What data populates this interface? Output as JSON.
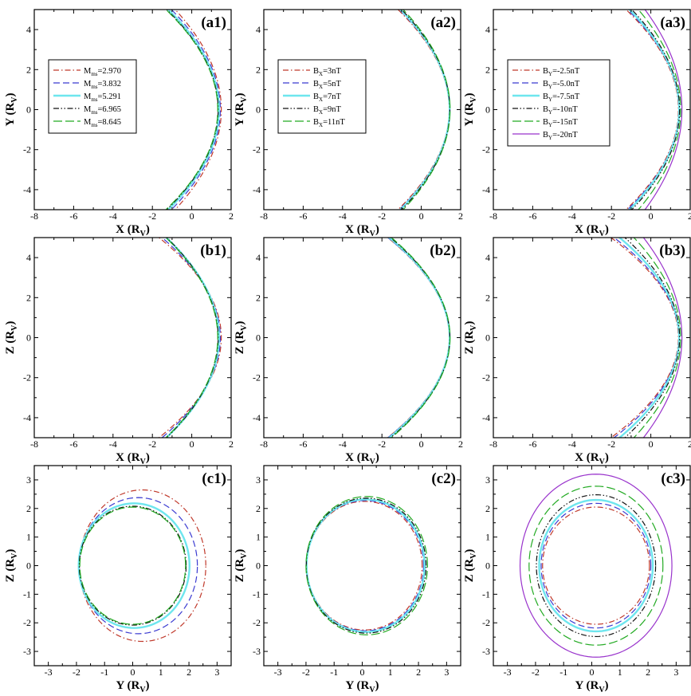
{
  "chart_data": [
    {
      "id": "a1",
      "type": "line",
      "panel_label": "(a1)",
      "xlabel": "X (R",
      "xlabel_sub": "V",
      "xlabel_end": ")",
      "ylabel": "Y (R",
      "ylabel_sub": "V",
      "ylabel_end": ")",
      "xlim": [
        -8,
        2
      ],
      "ylim": [
        -5,
        5
      ],
      "xticks": [
        -8,
        -6,
        -4,
        -2,
        0,
        2
      ],
      "yticks": [
        -4,
        -2,
        0,
        2,
        4
      ],
      "shape": "parabola",
      "legend_position": "upper-left",
      "series": [
        {
          "name": "M",
          "sub": "ms",
          "value": "=2.970",
          "color": "#c0392b",
          "dash": "dashdot",
          "nose": 1.5,
          "a": 10.67
        },
        {
          "name": "M",
          "sub": "ms",
          "value": "=3.832",
          "color": "#3b3bd1",
          "dash": "dash",
          "nose": 1.45,
          "a": 10.07
        },
        {
          "name": "M",
          "sub": "ms",
          "value": "=5.291",
          "color": "#6ee6ee",
          "dash": "solid",
          "nose": 1.38,
          "a": 9.72
        },
        {
          "name": "M",
          "sub": "ms",
          "value": "=6.965",
          "color": "#111111",
          "dash": "dashdotdot",
          "nose": 1.34,
          "a": 9.58
        },
        {
          "name": "M",
          "sub": "ms",
          "value": "=8.645",
          "color": "#22aa22",
          "dash": "longdash",
          "nose": 1.32,
          "a": 9.5
        }
      ]
    },
    {
      "id": "a2",
      "type": "line",
      "panel_label": "(a2)",
      "xlabel": "X (R",
      "xlabel_sub": "V",
      "xlabel_end": ")",
      "ylabel": "Y (R",
      "ylabel_sub": "V",
      "ylabel_end": ")",
      "xlim": [
        -8,
        2
      ],
      "ylim": [
        -5,
        5
      ],
      "xticks": [
        -8,
        -6,
        -4,
        -2,
        0,
        2
      ],
      "yticks": [
        -4,
        -2,
        0,
        2,
        4
      ],
      "shape": "parabola",
      "legend_position": "upper-left",
      "series": [
        {
          "name": "B",
          "sub": "X",
          "value": "=3nT",
          "color": "#c0392b",
          "dash": "dashdot",
          "nose": 1.42,
          "a": 9.6
        },
        {
          "name": "B",
          "sub": "X",
          "value": "=5nT",
          "color": "#3b3bd1",
          "dash": "dash",
          "nose": 1.43,
          "a": 9.8
        },
        {
          "name": "B",
          "sub": "X",
          "value": "=7nT",
          "color": "#6ee6ee",
          "dash": "solid",
          "nose": 1.44,
          "a": 10.0
        },
        {
          "name": "B",
          "sub": "X",
          "value": "=9nT",
          "color": "#111111",
          "dash": "dashdotdot",
          "nose": 1.45,
          "a": 10.2
        },
        {
          "name": "B",
          "sub": "X",
          "value": "=11nT",
          "color": "#22aa22",
          "dash": "longdash",
          "nose": 1.46,
          "a": 10.5
        }
      ]
    },
    {
      "id": "a3",
      "type": "line",
      "panel_label": "(a3)",
      "xlabel": "X (R",
      "xlabel_sub": "V",
      "xlabel_end": ")",
      "ylabel": "Y (R",
      "ylabel_sub": "V",
      "ylabel_end": ")",
      "xlim": [
        -8,
        2
      ],
      "ylim": [
        -5,
        5
      ],
      "xticks": [
        -8,
        -6,
        -4,
        -2,
        0,
        2
      ],
      "yticks": [
        -4,
        -2,
        0,
        2,
        4
      ],
      "shape": "parabola",
      "legend_position": "upper-left",
      "series": [
        {
          "name": "B",
          "sub": "Y",
          "value": "=-2.5nT",
          "color": "#c0392b",
          "dash": "dashdot",
          "nose": 1.4,
          "a": 9.4
        },
        {
          "name": "B",
          "sub": "Y",
          "value": "=-5.0nT",
          "color": "#3b3bd1",
          "dash": "dash",
          "nose": 1.42,
          "a": 9.6
        },
        {
          "name": "B",
          "sub": "Y",
          "value": "=-7.5nT",
          "color": "#6ee6ee",
          "dash": "solid",
          "nose": 1.44,
          "a": 9.9
        },
        {
          "name": "B",
          "sub": "Y",
          "value": "=-10nT",
          "color": "#111111",
          "dash": "dashdotdot",
          "nose": 1.46,
          "a": 10.3
        },
        {
          "name": "B",
          "sub": "Y",
          "value": "=-15nT",
          "color": "#22aa22",
          "dash": "longdash",
          "nose": 1.52,
          "a": 11.6
        },
        {
          "name": "B",
          "sub": "Y",
          "value": "=-20nT",
          "color": "#9933cc",
          "dash": "solid",
          "nose": 1.58,
          "a": 13.3
        }
      ]
    },
    {
      "id": "b1",
      "type": "line",
      "panel_label": "(b1)",
      "xlabel": "X (R",
      "xlabel_sub": "V",
      "xlabel_end": ")",
      "ylabel": "Z (R",
      "ylabel_sub": "V",
      "ylabel_end": ")",
      "xlim": [
        -8,
        2
      ],
      "ylim": [
        -5,
        5
      ],
      "xticks": [
        -8,
        -6,
        -4,
        -2,
        0,
        2
      ],
      "yticks": [
        -4,
        -2,
        0,
        2,
        4
      ],
      "shape": "parabola",
      "series": [
        {
          "color": "#c0392b",
          "dash": "dashdot",
          "nose": 1.5,
          "a": 7.9
        },
        {
          "color": "#3b3bd1",
          "dash": "dash",
          "nose": 1.45,
          "a": 8.45
        },
        {
          "color": "#6ee6ee",
          "dash": "solid",
          "nose": 1.38,
          "a": 9.35
        },
        {
          "color": "#111111",
          "dash": "dashdotdot",
          "nose": 1.34,
          "a": 9.55
        },
        {
          "color": "#22aa22",
          "dash": "longdash",
          "nose": 1.32,
          "a": 9.5
        }
      ]
    },
    {
      "id": "b2",
      "type": "line",
      "panel_label": "(b2)",
      "xlabel": "X (R",
      "xlabel_sub": "V",
      "xlabel_end": ")",
      "ylabel": "Z (R",
      "ylabel_sub": "V",
      "ylabel_end": ")",
      "xlim": [
        -8,
        2
      ],
      "ylim": [
        -5,
        5
      ],
      "xticks": [
        -8,
        -6,
        -4,
        -2,
        0,
        2
      ],
      "yticks": [
        -4,
        -2,
        0,
        2,
        4
      ],
      "shape": "parabola",
      "series": [
        {
          "color": "#c0392b",
          "dash": "dashdot",
          "nose": 1.42,
          "a": 8.0
        },
        {
          "color": "#3b3bd1",
          "dash": "dash",
          "nose": 1.43,
          "a": 8.0
        },
        {
          "color": "#6ee6ee",
          "dash": "solid",
          "nose": 1.44,
          "a": 8.15
        },
        {
          "color": "#111111",
          "dash": "dashdotdot",
          "nose": 1.45,
          "a": 8.3
        },
        {
          "color": "#22aa22",
          "dash": "longdash",
          "nose": 1.46,
          "a": 8.4
        }
      ]
    },
    {
      "id": "b3",
      "type": "line",
      "panel_label": "(b3)",
      "xlabel": "X (R",
      "xlabel_sub": "V",
      "xlabel_end": ")",
      "ylabel": "Z (R",
      "ylabel_sub": "V",
      "ylabel_end": ")",
      "xlim": [
        -8,
        2
      ],
      "ylim": [
        -5,
        5
      ],
      "xticks": [
        -8,
        -6,
        -4,
        -2,
        0,
        2
      ],
      "yticks": [
        -4,
        -2,
        0,
        2,
        4
      ],
      "shape": "parabola",
      "series": [
        {
          "color": "#c0392b",
          "dash": "dashdot",
          "nose": 1.4,
          "a": 7.3
        },
        {
          "color": "#3b3bd1",
          "dash": "dash",
          "nose": 1.42,
          "a": 7.6
        },
        {
          "color": "#6ee6ee",
          "dash": "solid",
          "nose": 1.44,
          "a": 8.25
        },
        {
          "color": "#111111",
          "dash": "dashdotdot",
          "nose": 1.46,
          "a": 9.0
        },
        {
          "color": "#22aa22",
          "dash": "longdash",
          "nose": 1.52,
          "a": 10.5
        },
        {
          "color": "#9933cc",
          "dash": "solid",
          "nose": 1.58,
          "a": 12.8
        }
      ]
    },
    {
      "id": "c1",
      "type": "line",
      "panel_label": "(c1)",
      "xlabel": "Y (R",
      "xlabel_sub": "V",
      "xlabel_end": ")",
      "ylabel": "Z (R",
      "ylabel_sub": "V",
      "ylabel_end": ")",
      "xlim": [
        -3.5,
        3.5
      ],
      "ylim": [
        -3.5,
        3.5
      ],
      "xticks": [
        -3,
        -2,
        -1,
        0,
        1,
        2,
        3
      ],
      "yticks": [
        -3,
        -2,
        -1,
        0,
        1,
        2,
        3
      ],
      "shape": "ellipse",
      "series": [
        {
          "color": "#c0392b",
          "dash": "dashdot",
          "cx": 0.35,
          "cy": 0.0,
          "rx": 2.25,
          "ry": 2.65
        },
        {
          "color": "#3b3bd1",
          "dash": "dash",
          "cx": 0.2,
          "cy": 0.0,
          "rx": 2.1,
          "ry": 2.38
        },
        {
          "color": "#6ee6ee",
          "dash": "solid",
          "cx": 0.05,
          "cy": 0.0,
          "rx": 1.97,
          "ry": 2.18
        },
        {
          "color": "#111111",
          "dash": "dashdotdot",
          "cx": 0.0,
          "cy": 0.0,
          "rx": 1.9,
          "ry": 2.08
        },
        {
          "color": "#22aa22",
          "dash": "longdash",
          "cx": 0.0,
          "cy": 0.0,
          "rx": 1.88,
          "ry": 2.05
        }
      ]
    },
    {
      "id": "c2",
      "type": "line",
      "panel_label": "(c2)",
      "xlabel": "Y (R",
      "xlabel_sub": "V",
      "xlabel_end": ")",
      "ylabel": "Z (R",
      "ylabel_sub": "V",
      "ylabel_end": ")",
      "xlim": [
        -3.5,
        3.5
      ],
      "ylim": [
        -3.5,
        3.5
      ],
      "xticks": [
        -3,
        -2,
        -1,
        0,
        1,
        2,
        3
      ],
      "yticks": [
        -3,
        -2,
        -1,
        0,
        1,
        2,
        3
      ],
      "shape": "ellipse",
      "series": [
        {
          "color": "#c0392b",
          "dash": "dashdot",
          "cx": 0.08,
          "cy": 0.0,
          "rx": 2.05,
          "ry": 2.25
        },
        {
          "color": "#3b3bd1",
          "dash": "dash",
          "cx": 0.1,
          "cy": 0.0,
          "rx": 2.08,
          "ry": 2.28
        },
        {
          "color": "#6ee6ee",
          "dash": "solid",
          "cx": 0.12,
          "cy": 0.0,
          "rx": 2.1,
          "ry": 2.32
        },
        {
          "color": "#111111",
          "dash": "dashdotdot",
          "cx": 0.14,
          "cy": 0.0,
          "rx": 2.13,
          "ry": 2.36
        },
        {
          "color": "#22aa22",
          "dash": "longdash",
          "cx": 0.16,
          "cy": 0.0,
          "rx": 2.16,
          "ry": 2.42
        }
      ]
    },
    {
      "id": "c3",
      "type": "line",
      "panel_label": "(c3)",
      "xlabel": "Y (R",
      "xlabel_sub": "V",
      "xlabel_end": ")",
      "ylabel": "Z (R",
      "ylabel_sub": "V",
      "ylabel_end": ")",
      "xlim": [
        -3.5,
        3.5
      ],
      "ylim": [
        -3.5,
        3.5
      ],
      "xticks": [
        -3,
        -2,
        -1,
        0,
        1,
        2,
        3
      ],
      "yticks": [
        -3,
        -2,
        -1,
        0,
        1,
        2,
        3
      ],
      "shape": "ellipse",
      "series": [
        {
          "color": "#c0392b",
          "dash": "dashdot",
          "cx": 0.15,
          "cy": 0.0,
          "rx": 1.9,
          "ry": 2.05
        },
        {
          "color": "#3b3bd1",
          "dash": "dash",
          "cx": 0.15,
          "cy": 0.0,
          "rx": 1.95,
          "ry": 2.18
        },
        {
          "color": "#6ee6ee",
          "dash": "solid",
          "cx": 0.15,
          "cy": 0.0,
          "rx": 2.02,
          "ry": 2.3
        },
        {
          "color": "#111111",
          "dash": "dashdotdot",
          "cx": 0.15,
          "cy": 0.0,
          "rx": 2.12,
          "ry": 2.48
        },
        {
          "color": "#22aa22",
          "dash": "longdash",
          "cx": 0.15,
          "cy": 0.0,
          "rx": 2.38,
          "ry": 2.78
        },
        {
          "color": "#9933cc",
          "dash": "solid",
          "cx": 0.15,
          "cy": 0.0,
          "rx": 2.7,
          "ry": 3.2
        }
      ]
    }
  ]
}
